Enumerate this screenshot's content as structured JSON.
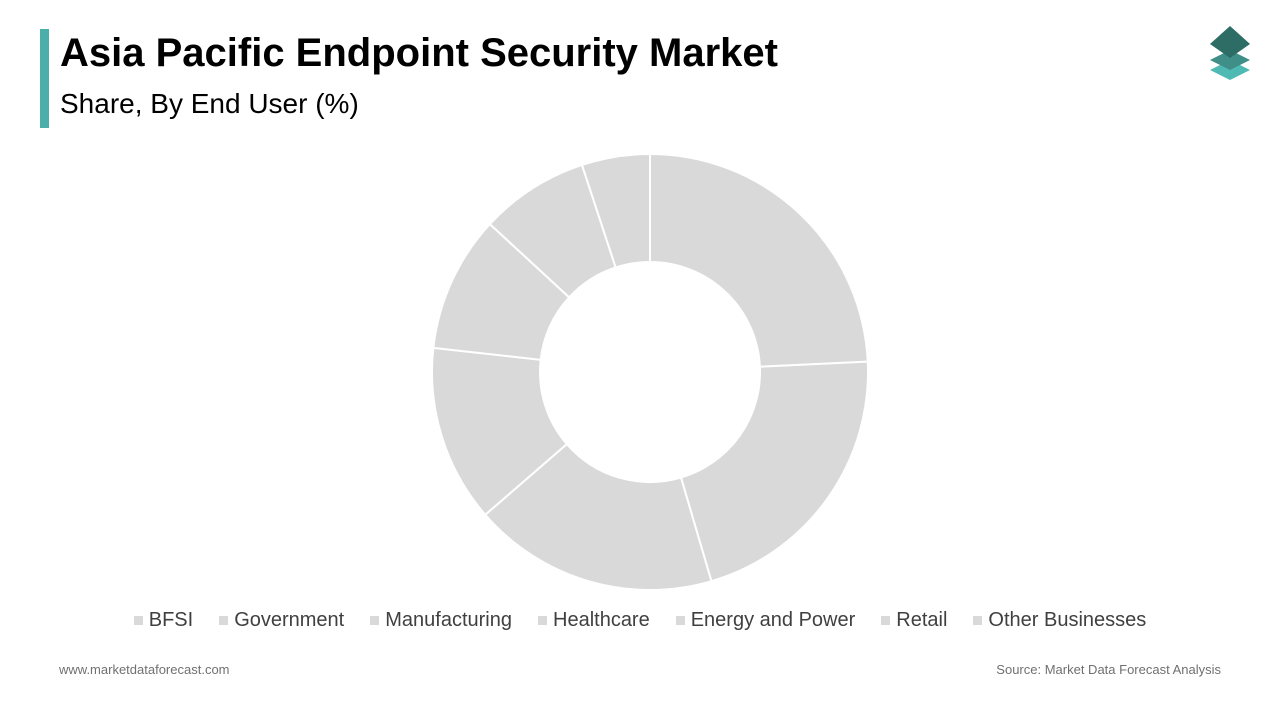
{
  "header": {
    "title": "Asia Pacific Endpoint Security Market",
    "subtitle": "Share, By End User (%)",
    "accent_color": "#4aaeaa"
  },
  "logo": {
    "icon": "stacked-layers-icon",
    "colors": [
      "#2e6d66",
      "#3f8f88",
      "#4fbab3"
    ]
  },
  "chart_data": {
    "type": "pie",
    "variant": "donut",
    "categories": [
      "BFSI",
      "Government",
      "Manufacturing",
      "Healthcare",
      "Energy and Power",
      "Retail",
      "Other Businesses"
    ],
    "values": [
      24,
      21,
      18,
      13,
      10,
      8,
      5
    ],
    "slice_color": "#d9d9d9",
    "separator_color": "#ffffff",
    "start_angle_deg": 0,
    "direction": "clockwise",
    "legend_position": "bottom"
  },
  "footer": {
    "website": "www.marketdataforecast.com",
    "source": "Source: Market Data Forecast Analysis"
  }
}
